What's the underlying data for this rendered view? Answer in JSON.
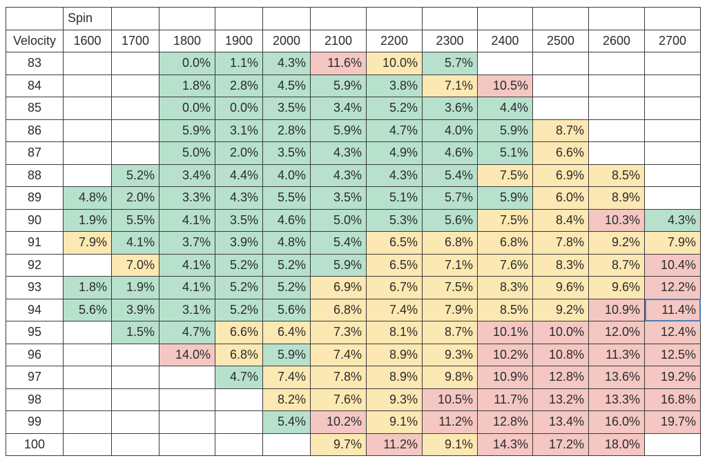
{
  "colors": {
    "green": "#b7e1cd",
    "yellow": "#fce8b2",
    "red": "#f4c7c3",
    "white": "#ffffff",
    "selection": "#4a7ebb"
  },
  "sheet": {
    "spin_header": "Spin",
    "velocity_header": "Velocity",
    "spins": [
      "1600",
      "1700",
      "1800",
      "1900",
      "2000",
      "2100",
      "2200",
      "2300",
      "2400",
      "2500",
      "2600",
      "2700"
    ],
    "selected_cell": {
      "row": 11,
      "col": 11
    },
    "rows": [
      {
        "velocity": "83",
        "cells": [
          "",
          "",
          "0.0%",
          "1.1%",
          "4.3%",
          "11.6%",
          "10.0%",
          "5.7%",
          "",
          "",
          "",
          ""
        ],
        "colors": [
          "",
          "",
          "g",
          "g",
          "g",
          "r",
          "y",
          "g",
          "",
          "",
          "",
          ""
        ]
      },
      {
        "velocity": "84",
        "cells": [
          "",
          "",
          "1.8%",
          "2.8%",
          "4.5%",
          "5.9%",
          "3.8%",
          "7.1%",
          "10.5%",
          "",
          "",
          ""
        ],
        "colors": [
          "",
          "",
          "g",
          "g",
          "g",
          "g",
          "g",
          "y",
          "r",
          "",
          "",
          ""
        ]
      },
      {
        "velocity": "85",
        "cells": [
          "",
          "",
          "0.0%",
          "0.0%",
          "3.5%",
          "3.4%",
          "5.2%",
          "3.6%",
          "4.4%",
          "",
          "",
          ""
        ],
        "colors": [
          "",
          "",
          "g",
          "g",
          "g",
          "g",
          "g",
          "g",
          "g",
          "",
          "",
          ""
        ]
      },
      {
        "velocity": "86",
        "cells": [
          "",
          "",
          "5.9%",
          "3.1%",
          "2.8%",
          "5.9%",
          "4.7%",
          "4.0%",
          "5.9%",
          "8.7%",
          "",
          ""
        ],
        "colors": [
          "",
          "",
          "g",
          "g",
          "g",
          "g",
          "g",
          "g",
          "g",
          "y",
          "",
          ""
        ]
      },
      {
        "velocity": "87",
        "cells": [
          "",
          "",
          "5.0%",
          "2.0%",
          "3.5%",
          "4.3%",
          "4.9%",
          "4.6%",
          "5.1%",
          "6.6%",
          "",
          ""
        ],
        "colors": [
          "",
          "",
          "g",
          "g",
          "g",
          "g",
          "g",
          "g",
          "g",
          "y",
          "",
          ""
        ]
      },
      {
        "velocity": "88",
        "cells": [
          "",
          "5.2%",
          "3.4%",
          "4.4%",
          "4.0%",
          "4.3%",
          "4.3%",
          "5.4%",
          "7.5%",
          "6.9%",
          "8.5%",
          ""
        ],
        "colors": [
          "",
          "g",
          "g",
          "g",
          "g",
          "g",
          "g",
          "g",
          "y",
          "y",
          "y",
          ""
        ]
      },
      {
        "velocity": "89",
        "cells": [
          "4.8%",
          "2.0%",
          "3.3%",
          "4.3%",
          "5.5%",
          "3.5%",
          "5.1%",
          "5.7%",
          "5.9%",
          "6.0%",
          "8.9%",
          ""
        ],
        "colors": [
          "g",
          "g",
          "g",
          "g",
          "g",
          "g",
          "g",
          "g",
          "g",
          "y",
          "y",
          ""
        ]
      },
      {
        "velocity": "90",
        "cells": [
          "1.9%",
          "5.5%",
          "4.1%",
          "3.5%",
          "4.6%",
          "5.0%",
          "5.3%",
          "5.6%",
          "7.5%",
          "8.4%",
          "10.3%",
          "4.3%"
        ],
        "colors": [
          "g",
          "g",
          "g",
          "g",
          "g",
          "g",
          "g",
          "g",
          "y",
          "y",
          "r",
          "g"
        ]
      },
      {
        "velocity": "91",
        "cells": [
          "7.9%",
          "4.1%",
          "3.7%",
          "3.9%",
          "4.8%",
          "5.4%",
          "6.5%",
          "6.8%",
          "6.8%",
          "7.8%",
          "9.2%",
          "7.9%"
        ],
        "colors": [
          "y",
          "g",
          "g",
          "g",
          "g",
          "g",
          "y",
          "y",
          "y",
          "y",
          "y",
          "y"
        ]
      },
      {
        "velocity": "92",
        "cells": [
          "",
          "7.0%",
          "4.1%",
          "5.2%",
          "5.2%",
          "5.9%",
          "6.5%",
          "7.1%",
          "7.6%",
          "8.3%",
          "8.7%",
          "10.4%"
        ],
        "colors": [
          "",
          "y",
          "g",
          "g",
          "g",
          "g",
          "y",
          "y",
          "y",
          "y",
          "y",
          "r"
        ]
      },
      {
        "velocity": "93",
        "cells": [
          "1.8%",
          "1.9%",
          "4.1%",
          "5.2%",
          "5.2%",
          "6.9%",
          "6.7%",
          "7.5%",
          "8.3%",
          "9.6%",
          "9.6%",
          "12.2%"
        ],
        "colors": [
          "g",
          "g",
          "g",
          "g",
          "g",
          "y",
          "y",
          "y",
          "y",
          "y",
          "y",
          "r"
        ]
      },
      {
        "velocity": "94",
        "cells": [
          "5.6%",
          "3.9%",
          "3.1%",
          "5.2%",
          "5.6%",
          "6.8%",
          "7.4%",
          "7.9%",
          "8.5%",
          "9.2%",
          "10.9%",
          "11.4%"
        ],
        "colors": [
          "g",
          "g",
          "g",
          "g",
          "g",
          "y",
          "y",
          "y",
          "y",
          "y",
          "r",
          "r"
        ]
      },
      {
        "velocity": "95",
        "cells": [
          "",
          "1.5%",
          "4.7%",
          "6.6%",
          "6.4%",
          "7.3%",
          "8.1%",
          "8.7%",
          "10.1%",
          "10.0%",
          "12.0%",
          "12.4%"
        ],
        "colors": [
          "",
          "g",
          "g",
          "y",
          "y",
          "y",
          "y",
          "y",
          "r",
          "r",
          "r",
          "r"
        ]
      },
      {
        "velocity": "96",
        "cells": [
          "",
          "",
          "14.0%",
          "6.8%",
          "5.9%",
          "7.4%",
          "8.9%",
          "9.3%",
          "10.2%",
          "10.8%",
          "11.3%",
          "12.5%"
        ],
        "colors": [
          "",
          "",
          "r",
          "y",
          "g",
          "y",
          "y",
          "y",
          "r",
          "r",
          "r",
          "r"
        ]
      },
      {
        "velocity": "97",
        "cells": [
          "",
          "",
          "",
          "4.7%",
          "7.4%",
          "7.8%",
          "8.9%",
          "9.8%",
          "10.9%",
          "12.8%",
          "13.6%",
          "19.2%"
        ],
        "colors": [
          "",
          "",
          "",
          "g",
          "y",
          "y",
          "y",
          "y",
          "r",
          "r",
          "r",
          "r"
        ]
      },
      {
        "velocity": "98",
        "cells": [
          "",
          "",
          "",
          "",
          "8.2%",
          "7.6%",
          "9.3%",
          "10.5%",
          "11.7%",
          "13.2%",
          "13.3%",
          "16.8%"
        ],
        "colors": [
          "",
          "",
          "",
          "",
          "y",
          "y",
          "y",
          "r",
          "r",
          "r",
          "r",
          "r"
        ]
      },
      {
        "velocity": "99",
        "cells": [
          "",
          "",
          "",
          "",
          "5.4%",
          "10.2%",
          "9.1%",
          "11.2%",
          "12.8%",
          "13.4%",
          "16.0%",
          "19.7%"
        ],
        "colors": [
          "",
          "",
          "",
          "",
          "g",
          "r",
          "y",
          "r",
          "r",
          "r",
          "r",
          "r"
        ]
      },
      {
        "velocity": "100",
        "cells": [
          "",
          "",
          "",
          "",
          "",
          "9.7%",
          "11.2%",
          "9.1%",
          "14.3%",
          "17.2%",
          "18.0%",
          ""
        ],
        "colors": [
          "",
          "",
          "",
          "",
          "",
          "y",
          "r",
          "y",
          "r",
          "r",
          "r",
          ""
        ]
      }
    ]
  }
}
